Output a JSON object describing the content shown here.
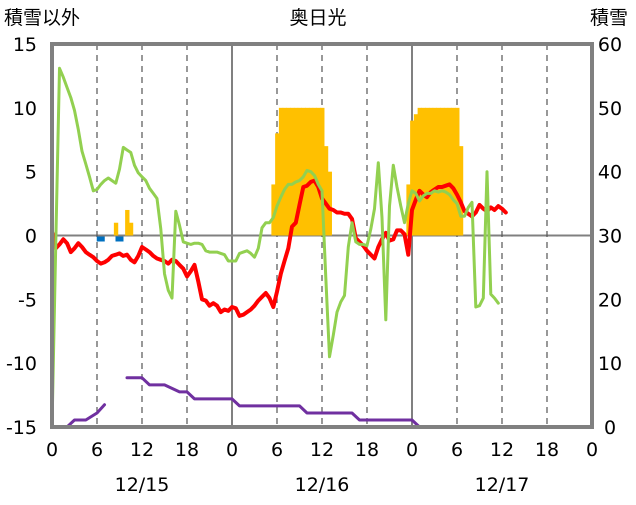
{
  "chart_data": {
    "type": "line",
    "title": "奥日光",
    "left_axis_label": "積雪以外",
    "right_axis_label": "積雪",
    "left_ylim": [
      -15,
      15
    ],
    "left_ticks": [
      "-15",
      "-10",
      "-5",
      "0",
      "5",
      "10",
      "15"
    ],
    "right_ylim": [
      0,
      60
    ],
    "right_ticks": [
      "0",
      "10",
      "20",
      "30",
      "40",
      "50",
      "60"
    ],
    "x_range_hours": [
      0,
      72
    ],
    "x_tick_labels": [
      "0",
      "6",
      "12",
      "18",
      "0",
      "6",
      "12",
      "18",
      "0",
      "6",
      "12",
      "18",
      "0"
    ],
    "day_labels": [
      "12/15",
      "12/16",
      "12/17"
    ],
    "grid": true,
    "series": [
      {
        "axis": "left",
        "color": "#ff0000",
        "points": [
          [
            0,
            0.3
          ],
          [
            0.5,
            -1.0
          ],
          [
            1,
            -0.7
          ],
          [
            1.5,
            -0.3
          ],
          [
            2,
            -0.6
          ],
          [
            2.5,
            -1.3
          ],
          [
            3,
            -1.0
          ],
          [
            3.5,
            -0.6
          ],
          [
            4,
            -0.9
          ],
          [
            4.5,
            -1.3
          ],
          [
            5,
            -1.5
          ],
          [
            5.5,
            -1.7
          ],
          [
            6,
            -2.0
          ],
          [
            6.5,
            -2.2
          ],
          [
            7,
            -2.1
          ],
          [
            7.5,
            -1.9
          ],
          [
            8,
            -1.6
          ],
          [
            8.5,
            -1.5
          ],
          [
            9,
            -1.4
          ],
          [
            9.5,
            -1.6
          ],
          [
            10,
            -1.5
          ],
          [
            10.5,
            -1.9
          ],
          [
            11,
            -2.1
          ],
          [
            11.5,
            -1.6
          ],
          [
            12,
            -0.9
          ],
          [
            12.5,
            -1.1
          ],
          [
            13,
            -1.3
          ],
          [
            13.5,
            -1.6
          ],
          [
            14,
            -1.8
          ],
          [
            14.5,
            -1.9
          ],
          [
            15,
            -2.0
          ],
          [
            15.5,
            -2.2
          ],
          [
            16,
            -1.9
          ],
          [
            16.5,
            -2.0
          ],
          [
            17,
            -2.3
          ],
          [
            17.5,
            -2.6
          ],
          [
            18,
            -3.2
          ],
          [
            18.5,
            -2.8
          ],
          [
            19,
            -2.3
          ],
          [
            19.5,
            -3.6
          ],
          [
            20,
            -5.0
          ],
          [
            20.5,
            -5.1
          ],
          [
            21,
            -5.5
          ],
          [
            21.5,
            -5.3
          ],
          [
            22,
            -5.5
          ],
          [
            22.5,
            -6.0
          ],
          [
            23,
            -5.8
          ],
          [
            23.5,
            -5.9
          ],
          [
            24,
            -5.6
          ],
          [
            24.5,
            -5.7
          ],
          [
            25,
            -6.3
          ],
          [
            25.5,
            -6.2
          ],
          [
            26,
            -6.0
          ],
          [
            26.5,
            -5.8
          ],
          [
            27,
            -5.5
          ],
          [
            27.5,
            -5.1
          ],
          [
            28,
            -4.8
          ],
          [
            28.5,
            -4.5
          ],
          [
            29,
            -4.9
          ],
          [
            29.5,
            -5.6
          ],
          [
            30,
            -4.4
          ],
          [
            30.5,
            -3.0
          ],
          [
            31,
            -2.0
          ],
          [
            31.5,
            -1.0
          ],
          [
            32,
            0.7
          ],
          [
            32.5,
            1.0
          ],
          [
            33,
            2.4
          ],
          [
            33.5,
            3.8
          ],
          [
            34,
            3.9
          ],
          [
            34.5,
            4.2
          ],
          [
            35,
            4.3
          ],
          [
            35.5,
            3.8
          ],
          [
            36,
            2.9
          ],
          [
            36.5,
            2.5
          ],
          [
            37,
            2.1
          ],
          [
            37.5,
            2.0
          ],
          [
            38,
            1.8
          ],
          [
            38.5,
            1.8
          ],
          [
            39,
            1.7
          ],
          [
            39.5,
            1.7
          ],
          [
            40,
            1.3
          ],
          [
            40.5,
            -0.2
          ],
          [
            41,
            -0.5
          ],
          [
            41.5,
            -0.8
          ],
          [
            42,
            -1.2
          ],
          [
            42.5,
            -1.5
          ],
          [
            43,
            -1.8
          ],
          [
            43.5,
            -0.9
          ],
          [
            44,
            -0.3
          ],
          [
            44.5,
            0.2
          ],
          [
            45,
            -0.4
          ],
          [
            45.5,
            -0.3
          ],
          [
            46,
            0.4
          ],
          [
            46.5,
            0.4
          ],
          [
            47,
            0.1
          ],
          [
            47.5,
            -1.5
          ],
          [
            48,
            2.0
          ],
          [
            48.5,
            2.8
          ],
          [
            49,
            3.5
          ],
          [
            49.5,
            3.2
          ],
          [
            50,
            3.0
          ],
          [
            50.5,
            3.4
          ],
          [
            51,
            3.6
          ],
          [
            51.5,
            3.8
          ],
          [
            52,
            3.8
          ],
          [
            52.5,
            3.9
          ],
          [
            53,
            4.0
          ],
          [
            53.5,
            3.7
          ],
          [
            54,
            3.2
          ],
          [
            54.5,
            2.6
          ],
          [
            55,
            1.9
          ],
          [
            55.5,
            1.7
          ],
          [
            56,
            1.5
          ],
          [
            56.5,
            1.8
          ],
          [
            57,
            2.4
          ],
          [
            57.5,
            2.1
          ],
          [
            58,
            1.9
          ],
          [
            58.5,
            2.2
          ],
          [
            59,
            2.0
          ],
          [
            59.5,
            2.3
          ],
          [
            60,
            2.1
          ],
          [
            60.5,
            1.8
          ]
        ]
      },
      {
        "axis": "left",
        "color": "#92d050",
        "points": [
          [
            0,
            -15
          ],
          [
            0.5,
            -0.5
          ],
          [
            1,
            13.1
          ],
          [
            1.5,
            12.4
          ],
          [
            2,
            11.6
          ],
          [
            2.5,
            10.8
          ],
          [
            3,
            9.8
          ],
          [
            3.5,
            8.3
          ],
          [
            4,
            6.6
          ],
          [
            4.5,
            5.6
          ],
          [
            5,
            4.6
          ],
          [
            5.5,
            3.5
          ],
          [
            6,
            3.6
          ],
          [
            6.5,
            4.0
          ],
          [
            7,
            4.3
          ],
          [
            7.5,
            4.5
          ],
          [
            8,
            4.3
          ],
          [
            8.5,
            4.1
          ],
          [
            9,
            5.2
          ],
          [
            9.5,
            6.9
          ],
          [
            10,
            6.7
          ],
          [
            10.5,
            6.5
          ],
          [
            11,
            5.5
          ],
          [
            11.5,
            4.9
          ],
          [
            12,
            4.6
          ],
          [
            12.5,
            4.3
          ],
          [
            13,
            3.7
          ],
          [
            13.5,
            3.3
          ],
          [
            14,
            2.9
          ],
          [
            14.5,
            0.5
          ],
          [
            15,
            -3.0
          ],
          [
            15.5,
            -4.3
          ],
          [
            16,
            -4.9
          ],
          [
            16.5,
            1.9
          ],
          [
            17,
            0.8
          ],
          [
            17.5,
            -0.5
          ],
          [
            18,
            -0.6
          ],
          [
            18.5,
            -0.7
          ],
          [
            19,
            -0.6
          ],
          [
            19.5,
            -0.6
          ],
          [
            20,
            -0.7
          ],
          [
            20.5,
            -1.2
          ],
          [
            21,
            -1.3
          ],
          [
            21.5,
            -1.3
          ],
          [
            22,
            -1.3
          ],
          [
            22.5,
            -1.4
          ],
          [
            23,
            -1.5
          ],
          [
            23.5,
            -2.0
          ],
          [
            24,
            -2.0
          ],
          [
            24.5,
            -2.0
          ],
          [
            25,
            -1.4
          ],
          [
            25.5,
            -1.3
          ],
          [
            26,
            -1.2
          ],
          [
            26.5,
            -1.4
          ],
          [
            27,
            -1.7
          ],
          [
            27.5,
            -1.0
          ],
          [
            28,
            0.6
          ],
          [
            28.5,
            1.0
          ],
          [
            29,
            1.0
          ],
          [
            29.5,
            1.4
          ],
          [
            30,
            2.3
          ],
          [
            30.5,
            3.0
          ],
          [
            31,
            3.6
          ],
          [
            31.5,
            4.0
          ],
          [
            32,
            4.0
          ],
          [
            32.5,
            4.2
          ],
          [
            33,
            4.3
          ],
          [
            33.5,
            4.6
          ],
          [
            34,
            5.1
          ],
          [
            34.5,
            5.0
          ],
          [
            35,
            4.7
          ],
          [
            35.5,
            4.0
          ],
          [
            36,
            3.5
          ],
          [
            36.5,
            -3.3
          ],
          [
            37,
            -9.5
          ],
          [
            37.5,
            -7.8
          ],
          [
            38,
            -6.0
          ],
          [
            38.5,
            -5.2
          ],
          [
            39,
            -4.7
          ],
          [
            39.5,
            -0.9
          ],
          [
            40,
            1.0
          ],
          [
            40.5,
            -0.5
          ],
          [
            41,
            -0.7
          ],
          [
            41.5,
            -0.7
          ],
          [
            42,
            -0.8
          ],
          [
            42.5,
            0.5
          ],
          [
            43,
            2.1
          ],
          [
            43.5,
            5.7
          ],
          [
            44,
            1.4
          ],
          [
            44.5,
            -6.6
          ],
          [
            45,
            2.3
          ],
          [
            45.5,
            5.5
          ],
          [
            46,
            3.8
          ],
          [
            46.5,
            2.3
          ],
          [
            47,
            1.0
          ],
          [
            47.5,
            2.5
          ],
          [
            48,
            3.5
          ],
          [
            48.5,
            3.3
          ],
          [
            49,
            2.7
          ],
          [
            49.5,
            3.1
          ],
          [
            50,
            3.3
          ],
          [
            50.5,
            3.3
          ],
          [
            51,
            3.5
          ],
          [
            51.5,
            3.4
          ],
          [
            52,
            3.5
          ],
          [
            52.5,
            3.4
          ],
          [
            53,
            3.2
          ],
          [
            53.5,
            2.8
          ],
          [
            54,
            2.5
          ],
          [
            54.5,
            1.5
          ],
          [
            55,
            1.5
          ],
          [
            55.5,
            2.2
          ],
          [
            56,
            2.6
          ],
          [
            56.5,
            -5.6
          ],
          [
            57,
            -5.5
          ],
          [
            57.5,
            -4.9
          ],
          [
            58,
            5.0
          ],
          [
            58.5,
            -4.6
          ],
          [
            59,
            -4.9
          ],
          [
            59.5,
            -5.3
          ]
        ]
      },
      {
        "axis": "left",
        "color": "#0070c0",
        "style": "tick-marks",
        "points": [
          [
            6.5,
            -0.3
          ],
          [
            9,
            -0.3
          ]
        ]
      },
      {
        "axis": "left",
        "color": "#ffc000",
        "style": "bars",
        "points": [
          [
            8.5,
            1.0
          ],
          [
            10,
            2.0
          ],
          [
            10.5,
            1.0
          ],
          [
            29.5,
            4.0
          ],
          [
            30,
            8.0
          ],
          [
            30.5,
            10.0
          ],
          [
            31,
            10.0
          ],
          [
            31.5,
            10.0
          ],
          [
            32,
            10.0
          ],
          [
            32.5,
            10.0
          ],
          [
            33,
            10.0
          ],
          [
            33.5,
            10.0
          ],
          [
            34,
            10.0
          ],
          [
            34.5,
            10.0
          ],
          [
            35,
            10.0
          ],
          [
            35.5,
            10.0
          ],
          [
            36,
            10.0
          ],
          [
            36.5,
            7.0
          ],
          [
            37,
            5.0
          ],
          [
            47.5,
            4.0
          ],
          [
            48,
            9.0
          ],
          [
            48.5,
            9.5
          ],
          [
            49,
            10.0
          ],
          [
            49.5,
            10.0
          ],
          [
            50,
            10.0
          ],
          [
            50.5,
            10.0
          ],
          [
            51,
            10.0
          ],
          [
            51.5,
            10.0
          ],
          [
            52,
            10.0
          ],
          [
            52.5,
            10.0
          ],
          [
            53,
            10.0
          ],
          [
            53.5,
            10.0
          ],
          [
            54,
            10.0
          ],
          [
            54.5,
            7.0
          ]
        ]
      },
      {
        "axis": "right",
        "color": "#7030a0",
        "points": [
          [
            0,
            0
          ],
          [
            2,
            0
          ],
          [
            3,
            1.1
          ],
          [
            4.5,
            1.1
          ],
          [
            6,
            2.2
          ],
          [
            7,
            3.5
          ],
          [
            null,
            null
          ],
          [
            10,
            7.7
          ],
          [
            12,
            7.7
          ],
          [
            13,
            6.6
          ],
          [
            15,
            6.6
          ],
          [
            17,
            5.5
          ],
          [
            18,
            5.5
          ],
          [
            19,
            4.4
          ],
          [
            24,
            4.4
          ],
          [
            25,
            3.3
          ],
          [
            33,
            3.3
          ],
          [
            34,
            2.2
          ],
          [
            40,
            2.2
          ],
          [
            41,
            1.1
          ],
          [
            48,
            1.1
          ],
          [
            49,
            0
          ],
          [
            60,
            0
          ]
        ]
      }
    ]
  }
}
